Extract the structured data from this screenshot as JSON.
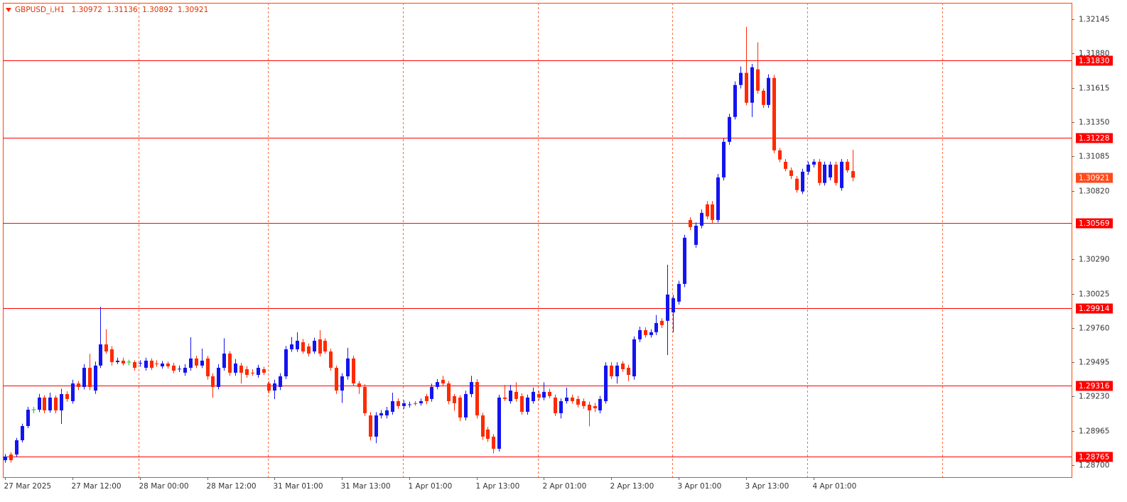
{
  "chart_data": {
    "type": "candlestick",
    "symbol": "GBPUSD_i,H1",
    "up_color": "#1414f0",
    "down_color": "#ff2a00",
    "doji_color": "#22c022",
    "level_color": "#ff0000",
    "grid_color": "#ff6a3d",
    "current_price_color": "#ff4a1c",
    "xlim": [
      -0.4,
      190
    ],
    "ylim": [
      1.28607,
      1.32272
    ],
    "yticks": [
      1.32145,
      {
        "value": 1.3188,
        "label": "1.31880"
      },
      1.31615,
      {
        "value": 1.3135,
        "label": "1.31350"
      },
      1.31085,
      {
        "value": 1.3082,
        "label": "1.30820"
      },
      {
        "value": 1.3029,
        "label": "1.30290"
      },
      1.30025,
      {
        "value": 1.2976,
        "label": "1.29760"
      },
      1.29495,
      {
        "value": 1.2923,
        "label": "1.29230"
      },
      1.28965,
      {
        "value": 1.287,
        "label": "1.28700"
      }
    ],
    "xticks": [
      {
        "value": 0,
        "label": "27 Mar 2025"
      },
      {
        "value": 12,
        "label": "27 Mar 12:00"
      },
      {
        "value": 24,
        "label": "28 Mar 00:00"
      },
      {
        "value": 36,
        "label": "28 Mar 12:00"
      },
      {
        "value": 48,
        "label": "31 Mar 01:00"
      },
      {
        "value": 60,
        "label": "31 Mar 13:00"
      },
      {
        "value": 72,
        "label": "1 Apr 01:00"
      },
      {
        "value": 84,
        "label": "1 Apr 13:00"
      },
      {
        "value": 96,
        "label": "2 Apr 01:00"
      },
      {
        "value": 108,
        "label": "2 Apr 13:00"
      },
      {
        "value": 120,
        "label": "3 Apr 01:00"
      },
      {
        "value": 132,
        "label": "3 Apr 13:00"
      },
      {
        "value": 144,
        "label": "4 Apr 01:00"
      }
    ],
    "xgrid": [
      23.8,
      46.8,
      70.9,
      94.9,
      118.9,
      142.9,
      166.9
    ],
    "levels": [
      {
        "value": 1.3183,
        "label": "1.31830"
      },
      1.31228,
      1.30569,
      1.29914,
      1.29316,
      1.28765
    ],
    "ohlc": [
      [
        1.28738,
        1.28786,
        1.28718,
        1.28766
      ],
      [
        1.28782,
        1.288,
        1.2872,
        1.28738
      ],
      [
        1.28782,
        1.2891,
        1.28765,
        1.28892
      ],
      [
        1.28892,
        1.2902,
        1.28875,
        1.29002
      ],
      [
        1.29002,
        1.2915,
        1.28985,
        1.29128
      ],
      [
        1.29128,
        1.2915,
        1.291,
        1.29128
      ],
      [
        1.29128,
        1.2925,
        1.2911,
        1.29222
      ],
      [
        1.29222,
        1.2924,
        1.291,
        1.29123
      ],
      [
        1.29123,
        1.2926,
        1.29105,
        1.29222
      ],
      [
        1.29222,
        1.2924,
        1.291,
        1.29123
      ],
      [
        1.29123,
        1.2929,
        1.29018,
        1.29249
      ],
      [
        1.29249,
        1.2927,
        1.2919,
        1.29211
      ],
      [
        1.29194,
        1.2936,
        1.29175,
        1.29331
      ],
      [
        1.29331,
        1.2935,
        1.2928,
        1.29304
      ],
      [
        1.29304,
        1.2948,
        1.29285,
        1.29452
      ],
      [
        1.29452,
        1.2956,
        1.2928,
        1.29304
      ],
      [
        1.29276,
        1.295,
        1.2925,
        1.29469
      ],
      [
        1.29469,
        1.29924,
        1.2945,
        1.29633
      ],
      [
        1.29633,
        1.2975,
        1.2956,
        1.29578
      ],
      [
        1.29595,
        1.2962,
        1.2947,
        1.29496
      ],
      [
        1.29496,
        1.2953,
        1.2948,
        1.29507
      ],
      [
        1.29507,
        1.2953,
        1.2947,
        1.29485
      ],
      [
        1.29496,
        1.29515,
        1.2947,
        1.29496
      ],
      [
        1.29496,
        1.2951,
        1.2943,
        1.29452
      ],
      [
        1.29485,
        1.2951,
        1.2946,
        1.2949
      ],
      [
        1.29452,
        1.2953,
        1.2943,
        1.29507
      ],
      [
        1.29507,
        1.29525,
        1.29435,
        1.29452
      ],
      [
        1.29485,
        1.2951,
        1.2946,
        1.2948
      ],
      [
        1.29463,
        1.29505,
        1.29445,
        1.29485
      ],
      [
        1.29485,
        1.295,
        1.29445,
        1.29463
      ],
      [
        1.29469,
        1.2949,
        1.2941,
        1.2943
      ],
      [
        1.29441,
        1.2947,
        1.2942,
        1.29445
      ],
      [
        1.29414,
        1.2948,
        1.2939,
        1.29452
      ],
      [
        1.29452,
        1.29688,
        1.2943,
        1.29524
      ],
      [
        1.29524,
        1.29545,
        1.2945,
        1.29469
      ],
      [
        1.29469,
        1.296,
        1.2945,
        1.29507
      ],
      [
        1.29524,
        1.29545,
        1.2936,
        1.29386
      ],
      [
        1.29386,
        1.2941,
        1.2922,
        1.29304
      ],
      [
        1.29304,
        1.2948,
        1.29285,
        1.29452
      ],
      [
        1.29452,
        1.2968,
        1.2943,
        1.29562
      ],
      [
        1.29562,
        1.2958,
        1.2939,
        1.29414
      ],
      [
        1.29414,
        1.2952,
        1.2939,
        1.29485
      ],
      [
        1.29469,
        1.2949,
        1.2933,
        1.29414
      ],
      [
        1.29441,
        1.29465,
        1.29375,
        1.29397
      ],
      [
        1.29414,
        1.2944,
        1.2939,
        1.2941
      ],
      [
        1.29397,
        1.29475,
        1.29375,
        1.29452
      ],
      [
        1.29441,
        1.2946,
        1.29395,
        1.29414
      ],
      [
        1.29331,
        1.2935,
        1.29255,
        1.29276
      ],
      [
        1.29276,
        1.2936,
        1.2921,
        1.29331
      ],
      [
        1.29304,
        1.2941,
        1.2928,
        1.29386
      ],
      [
        1.29386,
        1.2962,
        1.29365,
        1.29595
      ],
      [
        1.29595,
        1.2969,
        1.29575,
        1.29633
      ],
      [
        1.29595,
        1.29727,
        1.29575,
        1.29661
      ],
      [
        1.2965,
        1.29675,
        1.2956,
        1.29578
      ],
      [
        1.29617,
        1.2964,
        1.2954,
        1.29562
      ],
      [
        1.29578,
        1.29685,
        1.2956,
        1.29661
      ],
      [
        1.29672,
        1.29743,
        1.2954,
        1.29562
      ],
      [
        1.29661,
        1.2968,
        1.2956,
        1.29578
      ],
      [
        1.29578,
        1.296,
        1.2943,
        1.29452
      ],
      [
        1.29452,
        1.2947,
        1.2925,
        1.29276
      ],
      [
        1.29276,
        1.2941,
        1.2918,
        1.29386
      ],
      [
        1.29386,
        1.29606,
        1.2936,
        1.29524
      ],
      [
        1.29524,
        1.29545,
        1.2931,
        1.29331
      ],
      [
        1.29331,
        1.2935,
        1.2925,
        1.29304
      ],
      [
        1.29304,
        1.29325,
        1.2908,
        1.29101
      ],
      [
        1.29084,
        1.2911,
        1.2889,
        1.2892
      ],
      [
        1.2892,
        1.2911,
        1.2887,
        1.29084
      ],
      [
        1.29084,
        1.29125,
        1.2906,
        1.29101
      ],
      [
        1.29084,
        1.2915,
        1.2906,
        1.29123
      ],
      [
        1.29112,
        1.2926,
        1.2909,
        1.29194
      ],
      [
        1.29194,
        1.29215,
        1.29135,
        1.29156
      ],
      [
        1.29156,
        1.292,
        1.29135,
        1.29178
      ],
      [
        1.29167,
        1.2919,
        1.29145,
        1.2917
      ],
      [
        1.29178,
        1.29195,
        1.2916,
        1.29175
      ],
      [
        1.29178,
        1.29215,
        1.2916,
        1.29194
      ],
      [
        1.29233,
        1.2925,
        1.2917,
        1.29194
      ],
      [
        1.29211,
        1.2933,
        1.2919,
        1.29304
      ],
      [
        1.29304,
        1.29365,
        1.29285,
        1.29342
      ],
      [
        1.29359,
        1.2939,
        1.2931,
        1.29331
      ],
      [
        1.29331,
        1.2935,
        1.2917,
        1.29194
      ],
      [
        1.29233,
        1.2925,
        1.2912,
        1.29178
      ],
      [
        1.29222,
        1.2924,
        1.2904,
        1.29068
      ],
      [
        1.29068,
        1.29275,
        1.29045,
        1.29249
      ],
      [
        1.29249,
        1.2939,
        1.29225,
        1.29342
      ],
      [
        1.29342,
        1.29365,
        1.2906,
        1.29084
      ],
      [
        1.29084,
        1.29105,
        1.28895,
        1.2892
      ],
      [
        1.28975,
        1.28995,
        1.2888,
        1.28903
      ],
      [
        1.2892,
        1.2894,
        1.2879,
        1.28826
      ],
      [
        1.28826,
        1.29245,
        1.28805,
        1.29222
      ],
      [
        1.29222,
        1.2932,
        1.29195,
        1.29211
      ],
      [
        1.29194,
        1.2932,
        1.29175,
        1.29276
      ],
      [
        1.29266,
        1.2934,
        1.2919,
        1.29211
      ],
      [
        1.29233,
        1.29255,
        1.2909,
        1.29112
      ],
      [
        1.29112,
        1.29245,
        1.2909,
        1.29222
      ],
      [
        1.29194,
        1.293,
        1.29175,
        1.29266
      ],
      [
        1.29249,
        1.29275,
        1.292,
        1.29222
      ],
      [
        1.29222,
        1.2934,
        1.292,
        1.29266
      ],
      [
        1.29266,
        1.2929,
        1.29215,
        1.29233
      ],
      [
        1.29222,
        1.29245,
        1.2908,
        1.29101
      ],
      [
        1.29101,
        1.29215,
        1.2906,
        1.29194
      ],
      [
        1.29194,
        1.293,
        1.29175,
        1.29222
      ],
      [
        1.29222,
        1.29245,
        1.29175,
        1.29194
      ],
      [
        1.29211,
        1.29235,
        1.29145,
        1.29167
      ],
      [
        1.29194,
        1.29215,
        1.29135,
        1.29156
      ],
      [
        1.29167,
        1.2919,
        1.29,
        1.29123
      ],
      [
        1.29156,
        1.2918,
        1.2911,
        1.29139
      ],
      [
        1.29123,
        1.29235,
        1.291,
        1.29211
      ],
      [
        1.29194,
        1.29495,
        1.29175,
        1.29469
      ],
      [
        1.29469,
        1.29495,
        1.29365,
        1.29386
      ],
      [
        1.29386,
        1.29495,
        1.2933,
        1.29469
      ],
      [
        1.29485,
        1.29505,
        1.2942,
        1.29441
      ],
      [
        1.29452,
        1.29475,
        1.2935,
        1.29397
      ],
      [
        1.29386,
        1.29695,
        1.2936,
        1.29672
      ],
      [
        1.29672,
        1.2977,
        1.2965,
        1.29743
      ],
      [
        1.29743,
        1.29765,
        1.29685,
        1.29705
      ],
      [
        1.29705,
        1.2975,
        1.29685,
        1.29727
      ],
      [
        1.29727,
        1.2986,
        1.29705,
        1.29798
      ],
      [
        1.29815,
        1.29835,
        1.2976,
        1.29782
      ],
      [
        1.29815,
        1.30248,
        1.29551,
        1.30018
      ],
      [
        1.2988,
        1.30015,
        1.29727,
        1.2999
      ],
      [
        1.29963,
        1.30125,
        1.2994,
        1.301
      ],
      [
        1.301,
        1.3048,
        1.30075,
        1.30457
      ],
      [
        1.30594,
        1.30615,
        1.30515,
        1.30539
      ],
      [
        1.30402,
        1.30575,
        1.3038,
        1.3055
      ],
      [
        1.3055,
        1.30675,
        1.3053,
        1.30649
      ],
      [
        1.30715,
        1.3074,
        1.306,
        1.30622
      ],
      [
        1.30715,
        1.3074,
        1.3057,
        1.30594
      ],
      [
        1.30594,
        1.3095,
        1.30575,
        1.30923
      ],
      [
        1.30923,
        1.31225,
        1.309,
        1.31198
      ],
      [
        1.31198,
        1.31415,
        1.31175,
        1.3139
      ],
      [
        1.3139,
        1.31665,
        1.3137,
        1.31637
      ],
      [
        1.31637,
        1.3178,
        1.3161,
        1.31731
      ],
      [
        1.31731,
        1.32087,
        1.3148,
        1.315
      ],
      [
        1.315,
        1.318,
        1.3139,
        1.31774
      ],
      [
        1.31758,
        1.31967,
        1.3157,
        1.31593
      ],
      [
        1.31593,
        1.3161,
        1.3146,
        1.31483
      ],
      [
        1.31483,
        1.3172,
        1.3146,
        1.31692
      ],
      [
        1.31692,
        1.31715,
        1.3111,
        1.31132
      ],
      [
        1.31132,
        1.3115,
        1.3104,
        1.31061
      ],
      [
        1.31044,
        1.31065,
        1.3097,
        1.30989
      ],
      [
        1.30978,
        1.31,
        1.3091,
        1.30934
      ],
      [
        1.30913,
        1.30935,
        1.30805,
        1.30825
      ],
      [
        1.30814,
        1.3099,
        1.30795,
        1.30967
      ],
      [
        1.30967,
        1.31045,
        1.30945,
        1.31022
      ],
      [
        1.31022,
        1.31065,
        1.31,
        1.31044
      ],
      [
        1.31044,
        1.31065,
        1.3086,
        1.3088
      ],
      [
        1.3088,
        1.31045,
        1.3086,
        1.31022
      ],
      [
        1.30923,
        1.31045,
        1.309,
        1.31022
      ],
      [
        1.31022,
        1.31045,
        1.3086,
        1.3088
      ],
      [
        1.30841,
        1.31065,
        1.3082,
        1.31044
      ],
      [
        1.31044,
        1.31065,
        1.3096,
        1.30978
      ],
      [
        1.30972,
        1.31136,
        1.30892,
        1.30921
      ]
    ]
  }
}
